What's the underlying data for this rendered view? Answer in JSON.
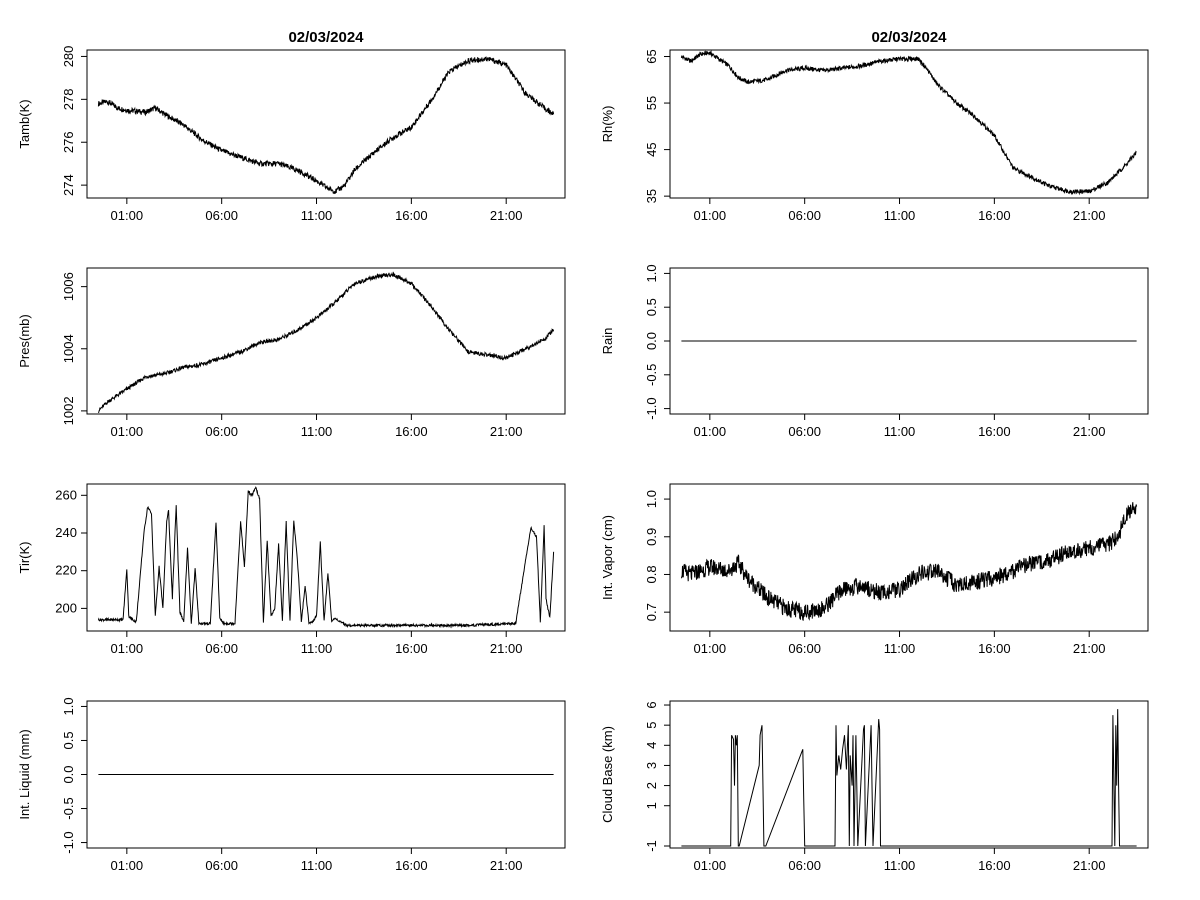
{
  "chart_data": [
    {
      "type": "line",
      "title": "02/03/2024",
      "ylabel": "Tamb(K)",
      "xlabel": "",
      "x_ticks": [
        "01:00",
        "06:00",
        "11:00",
        "16:00",
        "21:00"
      ],
      "y_ticks": [
        "274",
        "276",
        "278",
        "280"
      ],
      "ylim": [
        273.4,
        280.3
      ],
      "x_start_hour": -0.5,
      "x_end_hour": 23.5,
      "y_label_rotated": true,
      "noise": 0.08,
      "x": [
        -0.5,
        0,
        0.5,
        1,
        2,
        2.5,
        3,
        4,
        5,
        6,
        7,
        8,
        9,
        10,
        11,
        11.5,
        12,
        12.5,
        13,
        14,
        15,
        16,
        17,
        18,
        19,
        20,
        21,
        22,
        23,
        23.5
      ],
      "y": [
        277.8,
        277.9,
        277.6,
        277.5,
        277.4,
        277.6,
        277.3,
        276.8,
        276.1,
        275.6,
        275.3,
        275.0,
        275.0,
        274.7,
        274.2,
        273.9,
        273.7,
        274.0,
        274.7,
        275.5,
        276.2,
        276.7,
        277.9,
        279.3,
        279.8,
        279.9,
        279.6,
        278.3,
        277.6,
        277.3
      ]
    },
    {
      "type": "line",
      "title": "02/03/2024",
      "ylabel": "Rh(%)",
      "xlabel": "",
      "x_ticks": [
        "01:00",
        "06:00",
        "11:00",
        "16:00",
        "21:00"
      ],
      "y_ticks": [
        "35",
        "45",
        "55",
        "65"
      ],
      "ylim": [
        34.6,
        66.4
      ],
      "x_start_hour": -0.5,
      "x_end_hour": 23.5,
      "y_label_rotated": true,
      "noise": 0.3,
      "x": [
        -0.5,
        0,
        0.5,
        1,
        2,
        2.5,
        3,
        4,
        5,
        6,
        7,
        8,
        9,
        10,
        11,
        12,
        12.5,
        13,
        14,
        15,
        16,
        17,
        18,
        19,
        20,
        21,
        22,
        23,
        23.5
      ],
      "y": [
        65,
        64,
        65.5,
        65.8,
        63,
        60.5,
        59.5,
        60,
        62,
        62.5,
        62,
        62.5,
        63,
        64,
        64.5,
        64.5,
        62,
        59,
        55,
        52,
        48,
        41,
        39,
        37,
        36,
        36,
        38,
        42,
        44.5
      ]
    },
    {
      "type": "line",
      "title": "",
      "ylabel": "Pres(mb)",
      "xlabel": "",
      "x_ticks": [
        "01:00",
        "06:00",
        "11:00",
        "16:00",
        "21:00"
      ],
      "y_ticks": [
        "1002",
        "1004",
        "1006"
      ],
      "ylim": [
        1001.9,
        1006.6
      ],
      "x_start_hour": -0.5,
      "x_end_hour": 23.5,
      "y_label_rotated": true,
      "noise": 0.04,
      "x": [
        -0.5,
        0,
        1,
        2,
        3,
        4,
        5,
        6,
        7,
        8,
        9,
        10,
        11,
        12,
        13,
        14,
        15,
        16,
        17,
        18,
        19,
        20,
        21,
        22,
        23,
        23.5
      ],
      "y": [
        1002.0,
        1002.3,
        1002.7,
        1003.1,
        1003.2,
        1003.4,
        1003.5,
        1003.7,
        1003.9,
        1004.2,
        1004.3,
        1004.6,
        1005.0,
        1005.5,
        1006.1,
        1006.3,
        1006.4,
        1006.1,
        1005.4,
        1004.6,
        1003.9,
        1003.8,
        1003.7,
        1004.0,
        1004.3,
        1004.6
      ]
    },
    {
      "type": "line",
      "title": "",
      "ylabel": "Rain",
      "xlabel": "",
      "x_ticks": [
        "01:00",
        "06:00",
        "11:00",
        "16:00",
        "21:00"
      ],
      "y_ticks": [
        "-1.0",
        "-0.5",
        "0.0",
        "0.5",
        "1.0"
      ],
      "ylim": [
        -1.08,
        1.08
      ],
      "x_start_hour": -0.5,
      "x_end_hour": 23.5,
      "y_label_rotated": true,
      "noise": 0,
      "x": [
        -0.5,
        23.5
      ],
      "y": [
        0,
        0
      ]
    },
    {
      "type": "line",
      "title": "",
      "ylabel": "Tir(K)",
      "xlabel": "",
      "x_ticks": [
        "01:00",
        "06:00",
        "11:00",
        "16:00",
        "21:00"
      ],
      "y_ticks": [
        "200",
        "220",
        "240",
        "260"
      ],
      "ylim": [
        188,
        266
      ],
      "x_start_hour": -0.5,
      "x_end_hour": 23.5,
      "y_label_rotated": false,
      "noise": 0.4,
      "x": [
        -0.5,
        0.8,
        1.0,
        1.1,
        1.3,
        1.5,
        1.9,
        2.1,
        2.3,
        2.5,
        2.7,
        2.9,
        3.1,
        3.2,
        3.4,
        3.6,
        3.8,
        4.0,
        4.2,
        4.4,
        4.6,
        4.8,
        5.4,
        5.7,
        5.9,
        6.1,
        6.3,
        6.7,
        7.0,
        7.2,
        7.4,
        7.6,
        7.8,
        8.0,
        8.2,
        8.4,
        8.6,
        8.8,
        9.0,
        9.2,
        9.4,
        9.6,
        9.8,
        10.0,
        10.2,
        10.4,
        10.6,
        10.8,
        11.0,
        11.2,
        11.4,
        11.6,
        11.8,
        12.0,
        12.2,
        12.4,
        12.6,
        13.5,
        16.0,
        19.0,
        21.5,
        22.3,
        22.6,
        22.8,
        23.0,
        23.1,
        23.3,
        23.5
      ],
      "y": [
        194,
        194,
        221,
        196,
        194,
        193,
        240,
        254,
        250,
        196,
        222,
        200,
        246,
        252,
        205,
        255,
        198,
        193,
        232,
        192,
        221,
        192,
        192,
        246,
        195,
        192,
        192,
        192,
        246,
        222,
        262,
        260,
        264,
        258,
        193,
        236,
        196,
        200,
        234,
        194,
        246,
        193,
        247,
        225,
        193,
        212,
        192,
        193,
        196,
        235,
        193,
        219,
        193,
        195,
        193,
        192,
        191,
        191,
        191,
        191,
        192,
        243,
        238,
        193,
        244,
        205,
        195,
        230
      ]
    },
    {
      "type": "line",
      "title": "",
      "ylabel": "Int. Vapor (cm)",
      "xlabel": "",
      "x_ticks": [
        "01:00",
        "06:00",
        "11:00",
        "16:00",
        "21:00"
      ],
      "y_ticks": [
        "0.7",
        "0.8",
        "0.9",
        "1.0"
      ],
      "ylim": [
        0.65,
        1.04
      ],
      "x_start_hour": -0.5,
      "x_end_hour": 23.5,
      "y_label_rotated": true,
      "noise": 0.014,
      "x": [
        -0.5,
        0,
        1,
        2,
        2.5,
        3,
        4,
        5,
        6,
        7,
        8,
        9,
        10,
        11,
        12,
        13,
        14,
        15,
        16,
        17,
        18,
        19,
        20,
        21,
        22,
        22.5,
        23,
        23.5
      ],
      "y": [
        0.81,
        0.8,
        0.82,
        0.81,
        0.83,
        0.79,
        0.74,
        0.71,
        0.7,
        0.71,
        0.76,
        0.77,
        0.75,
        0.76,
        0.8,
        0.81,
        0.77,
        0.78,
        0.79,
        0.81,
        0.83,
        0.84,
        0.86,
        0.87,
        0.88,
        0.9,
        0.96,
        0.98
      ]
    },
    {
      "type": "line",
      "title": "",
      "ylabel": "Int. Liquid (mm)",
      "xlabel": "",
      "x_ticks": [
        "01:00",
        "06:00",
        "11:00",
        "16:00",
        "21:00"
      ],
      "y_ticks": [
        "-1.0",
        "-0.5",
        "0.0",
        "0.5",
        "1.0"
      ],
      "ylim": [
        -1.08,
        1.08
      ],
      "x_start_hour": -0.5,
      "x_end_hour": 23.5,
      "y_label_rotated": true,
      "noise": 0,
      "x": [
        -0.5,
        23.5
      ],
      "y": [
        0,
        0
      ]
    },
    {
      "type": "line",
      "title": "",
      "ylabel": "Cloud Base (km)",
      "xlabel": "",
      "x_ticks": [
        "01:00",
        "06:00",
        "11:00",
        "16:00",
        "21:00"
      ],
      "y_ticks": [
        "-1",
        "1",
        "2",
        "3",
        "4",
        "5",
        "6"
      ],
      "ylim": [
        -1.1,
        6.2
      ],
      "x_start_hour": -0.5,
      "x_end_hour": 23.5,
      "y_label_rotated": true,
      "noise": 0,
      "x": [
        -0.5,
        2.1,
        2.15,
        2.25,
        2.3,
        2.35,
        2.4,
        2.45,
        2.5,
        2.55,
        3.6,
        3.65,
        3.75,
        3.85,
        3.9,
        3.95,
        5.9,
        5.95,
        6.0,
        6.05,
        7.6,
        7.65,
        7.7,
        7.8,
        7.9,
        8.0,
        8.1,
        8.2,
        8.3,
        8.35,
        8.4,
        8.5,
        8.55,
        8.6,
        8.7,
        8.75,
        8.8,
        9.1,
        9.15,
        9.2,
        9.5,
        9.55,
        9.6,
        9.9,
        9.95,
        10.0,
        10.05,
        22.2,
        22.25,
        22.3,
        22.35,
        22.4,
        22.45,
        22.5,
        22.55,
        22.6,
        22.65,
        23.5
      ],
      "y": [
        -1,
        -1,
        4.5,
        4.3,
        2.0,
        4.5,
        4.0,
        4.5,
        -1,
        -1,
        3.0,
        4.5,
        5.0,
        -1,
        -1,
        -1,
        3.8,
        1.4,
        -1,
        -1,
        -1,
        5.0,
        2.5,
        3.5,
        2.8,
        3.8,
        4.5,
        2.8,
        5.0,
        -1,
        3.5,
        2.0,
        4.5,
        -1,
        4.5,
        2.0,
        -1,
        4.8,
        5.0,
        -1,
        5.0,
        2.0,
        -1,
        5.3,
        4.8,
        -1,
        -1,
        -1,
        5.5,
        2.0,
        -1,
        5.0,
        2.0,
        5.8,
        2.0,
        -1,
        -1,
        -1
      ]
    }
  ]
}
